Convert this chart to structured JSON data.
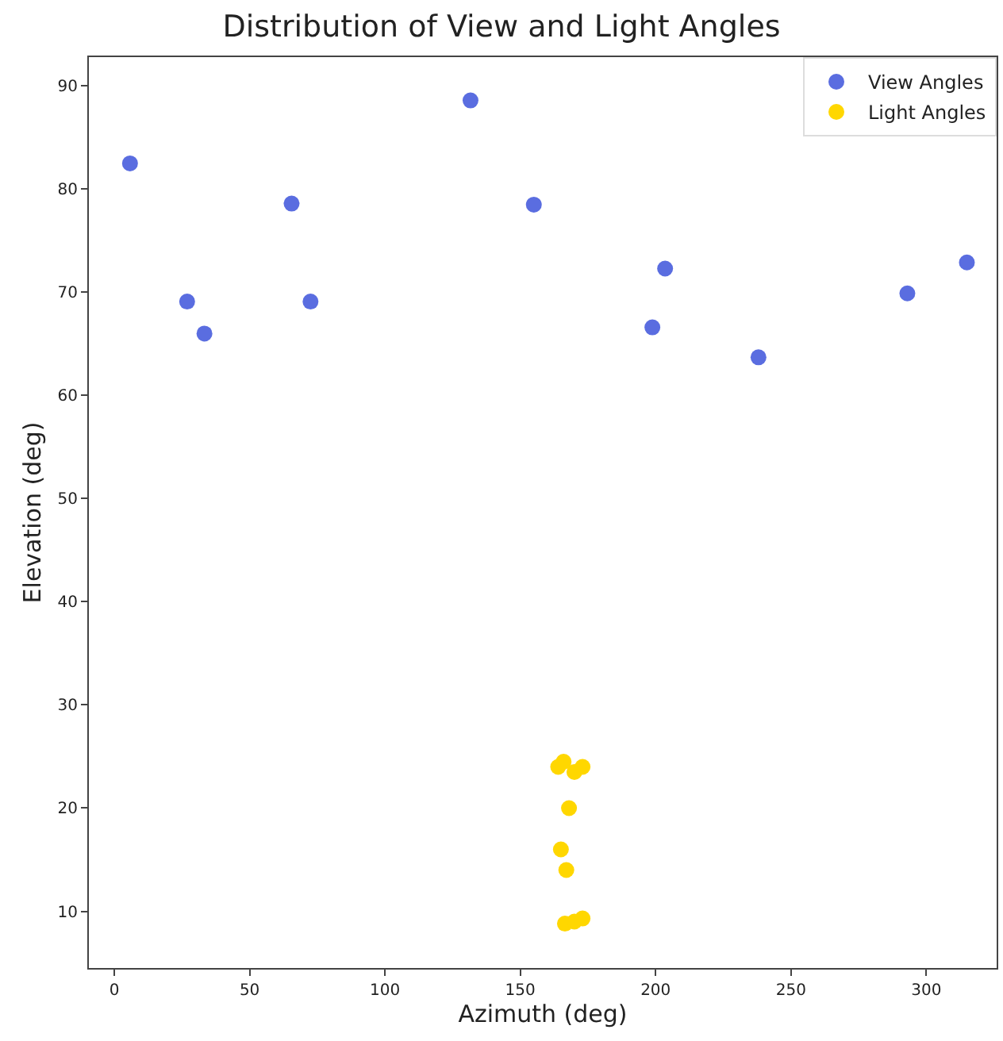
{
  "chart_data": {
    "type": "scatter",
    "title": "Distribution of View and Light Angles",
    "xlabel": "Azimuth (deg)",
    "ylabel": "Elevation (deg)",
    "series": [
      {
        "name": "View Angles",
        "color": "#5a6de0",
        "x": [
          5.8,
          26.9,
          33.3,
          65.5,
          72.5,
          131.6,
          155,
          203.5,
          198.8,
          238,
          293,
          315
        ],
        "values": [
          82.5,
          69.1,
          66.0,
          78.6,
          69.1,
          88.6,
          78.5,
          72.3,
          66.6,
          63.7,
          69.9,
          72.9
        ]
      },
      {
        "name": "Light Angles",
        "color": "#ffd700",
        "x": [
          164,
          166,
          170,
          173,
          168,
          165,
          167,
          166.5,
          170,
          173
        ],
        "values": [
          24,
          24.5,
          23.5,
          24,
          20,
          16,
          14,
          8.8,
          9,
          9.3
        ]
      }
    ],
    "xlim": [
      -9.4,
      326
    ],
    "ylim": [
      4.5,
      92.8
    ],
    "xticks": [
      0,
      50,
      100,
      150,
      200,
      250,
      300
    ],
    "yticks": [
      10,
      20,
      30,
      40,
      50,
      60,
      70,
      80,
      90
    ],
    "grid": false,
    "legend": "top right",
    "marker": "circle"
  }
}
